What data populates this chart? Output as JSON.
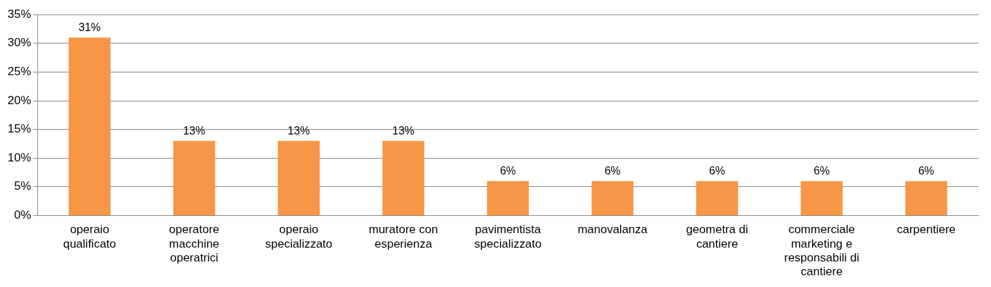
{
  "chart_data": {
    "type": "bar",
    "categories": [
      "operaio qualificato",
      "operatore macchine operatrici",
      "operaio specializzato",
      "muratore con esperienza",
      "pavimentista specializzato",
      "manovalanza",
      "geometra di cantiere",
      "commerciale marketing e responsabili di cantiere",
      "carpentiere"
    ],
    "values": [
      31,
      13,
      13,
      13,
      6,
      6,
      6,
      6,
      6
    ],
    "color": "#f79646",
    "ylim": [
      0,
      35
    ],
    "yticks": [
      {
        "value": 0,
        "label": "0%"
      },
      {
        "value": 5,
        "label": "5%"
      },
      {
        "value": 10,
        "label": "10%"
      },
      {
        "value": 15,
        "label": "15%"
      },
      {
        "value": 20,
        "label": "20%"
      },
      {
        "value": 25,
        "label": "25%"
      },
      {
        "value": 30,
        "label": "30%"
      },
      {
        "value": 35,
        "label": "35%"
      }
    ],
    "grid": "y",
    "value_labels": [
      "31%",
      "13%",
      "13%",
      "13%",
      "6%",
      "6%",
      "6%",
      "6%",
      "6%"
    ],
    "legend": false
  }
}
